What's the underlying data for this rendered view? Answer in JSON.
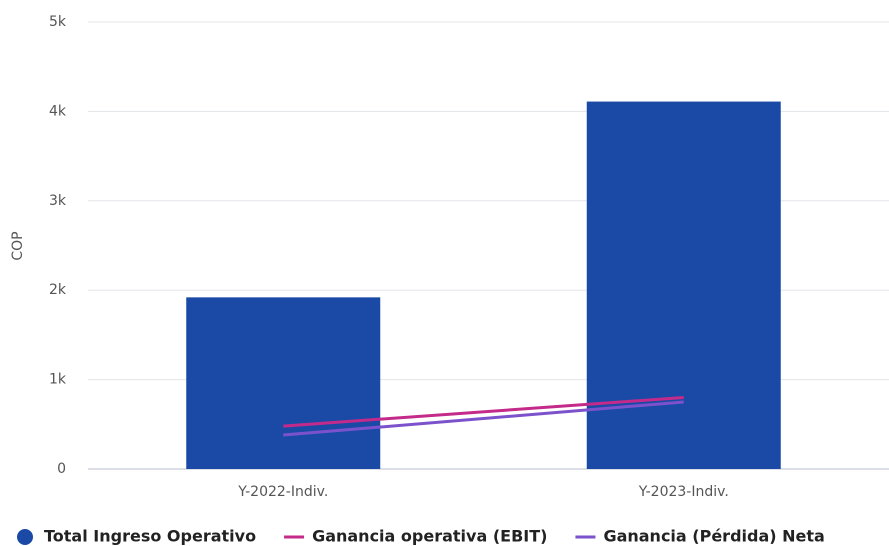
{
  "chart_data": {
    "type": "bar",
    "y_label": "COP",
    "categories": [
      "Y-2022-Indiv.",
      "Y-2023-Indiv."
    ],
    "series": [
      {
        "name": "Total Ingreso Operativo",
        "type": "bar",
        "color": "#1a4aa6",
        "values": [
          1920,
          4110
        ]
      },
      {
        "name": "Ganancia operativa (EBIT)",
        "type": "line",
        "color": "#c42a8a",
        "values": [
          480,
          800
        ]
      },
      {
        "name": "Ganancia (Pérdida) Neta",
        "type": "line",
        "color": "#7b52cc",
        "values": [
          380,
          750
        ]
      }
    ],
    "ylim": [
      0,
      5000
    ],
    "yticks": [
      0,
      {
        "value": 1000,
        "label": "1k"
      },
      {
        "value": 2000,
        "label": "2k"
      },
      {
        "value": 3000,
        "label": "3k"
      },
      {
        "value": 4000,
        "label": "4k"
      },
      {
        "value": 5000,
        "label": "5k"
      }
    ],
    "grid": true,
    "legend": "bottom"
  }
}
